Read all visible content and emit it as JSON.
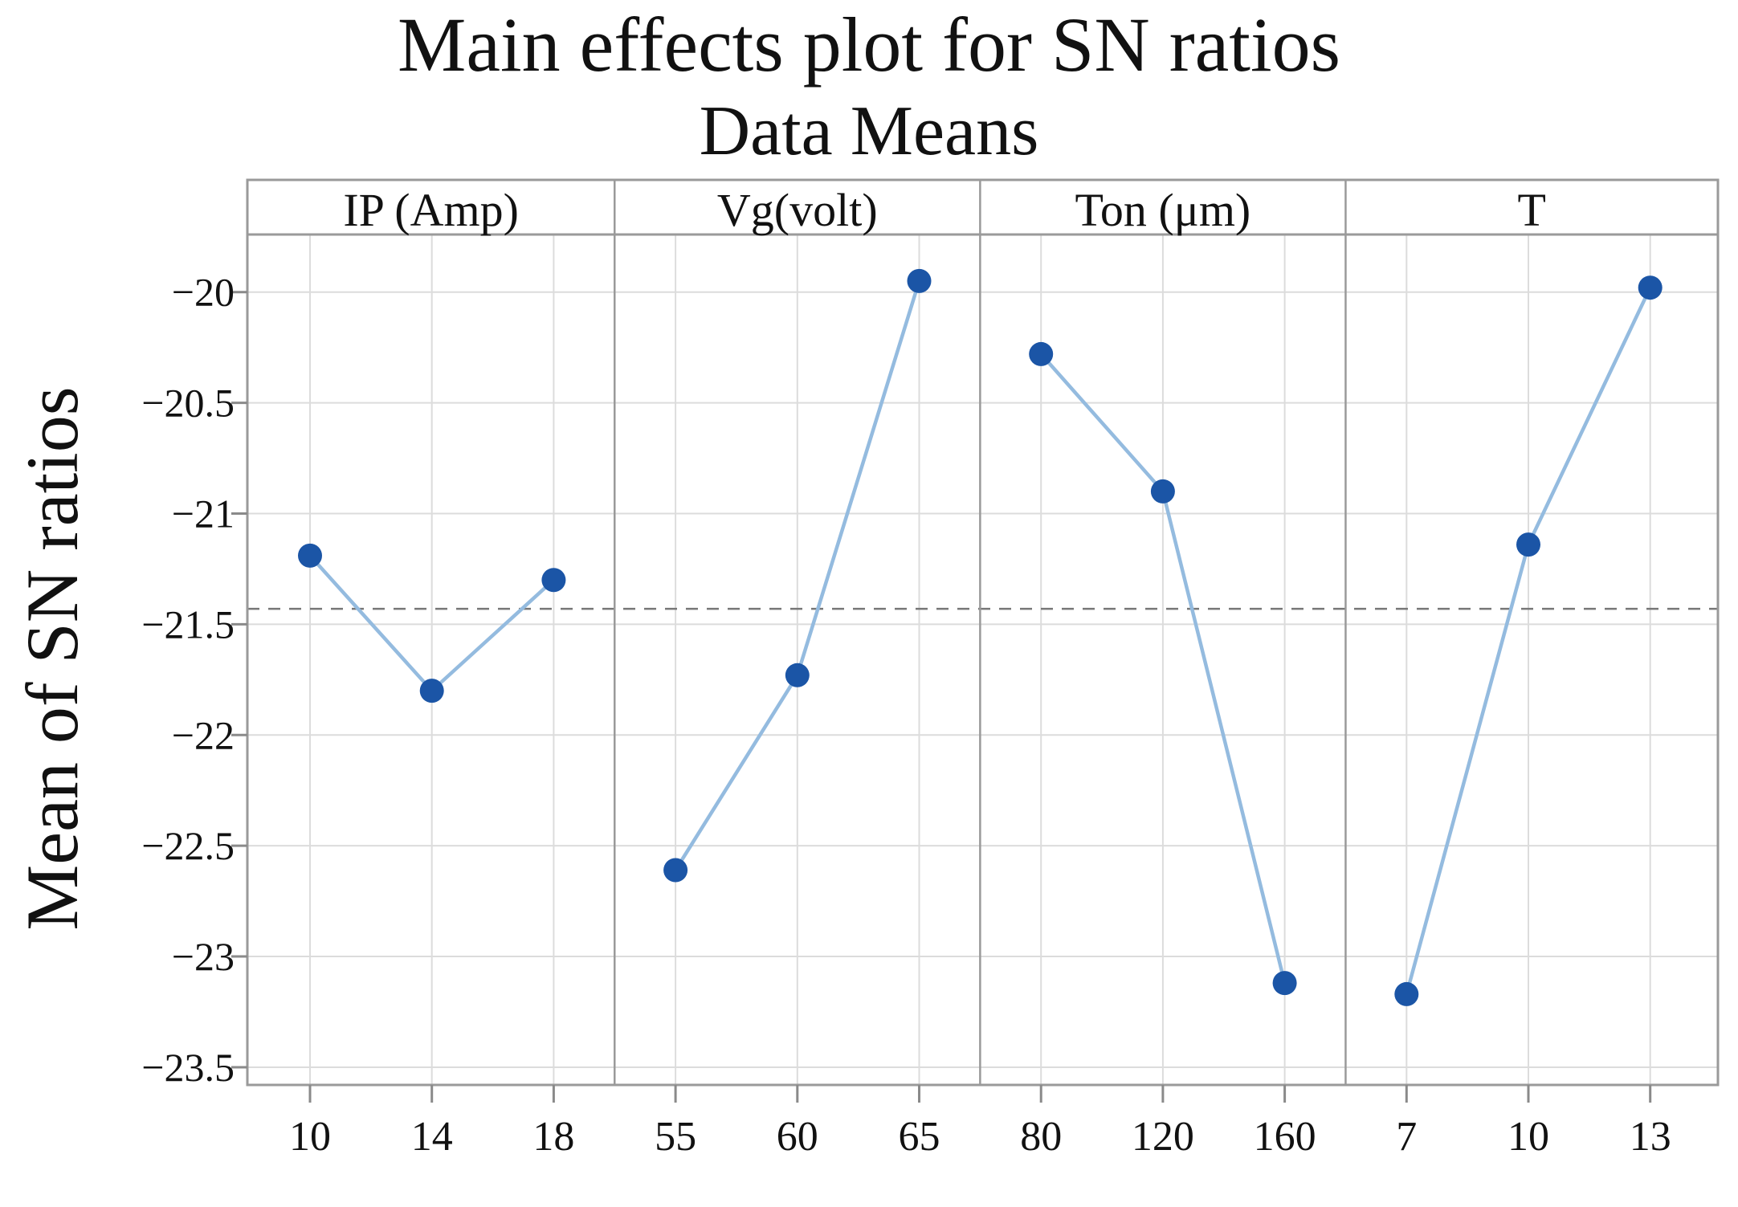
{
  "figure": {
    "title": "Main effects plot for SN ratios",
    "subtitle": "Data Means",
    "y_axis_title": "Mean of SN ratios"
  },
  "chart_data": {
    "type": "line",
    "title": "Main effects plot for SN ratios",
    "subtitle": "Data Means",
    "ylabel": "Mean of SN ratios",
    "ylim": [
      -23.58,
      -19.74
    ],
    "grid": true,
    "legend": "none",
    "y_ticks": [
      -20,
      -20.5,
      -21,
      -21.5,
      -22,
      -22.5,
      -23,
      -23.5
    ],
    "y_tick_labels": [
      "−20",
      "−20.5",
      "−21",
      "−21.5",
      "−22",
      "−22.5",
      "−23",
      "−23.5"
    ],
    "reference_line": -21.43,
    "panels": [
      {
        "label": "IP (Amp)",
        "categories": [
          "10",
          "14",
          "18"
        ],
        "values": [
          -21.19,
          -21.8,
          -21.3
        ]
      },
      {
        "label": "Vg(volt)",
        "categories": [
          "55",
          "60",
          "65"
        ],
        "values": [
          -22.61,
          -21.73,
          -19.95
        ]
      },
      {
        "label": "Ton (μm)",
        "categories": [
          "80",
          "120",
          "160"
        ],
        "values": [
          -20.28,
          -20.9,
          -23.12
        ]
      },
      {
        "label": "T",
        "categories": [
          "7",
          "10",
          "13"
        ],
        "values": [
          -23.17,
          -21.14,
          -19.98
        ]
      }
    ],
    "colors": {
      "marker": "#1b55a6",
      "line": "#94bbdf",
      "grid": "#dcdcdc",
      "frame": "#9a9a9a",
      "tick": "#8a8a8a",
      "reference": "#777777",
      "text": "#111111"
    }
  }
}
